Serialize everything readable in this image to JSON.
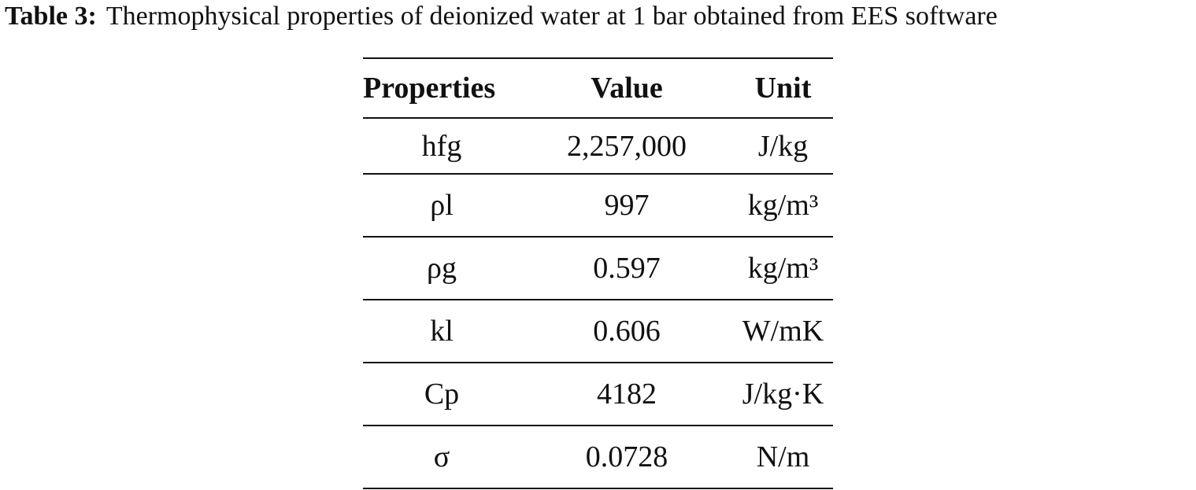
{
  "caption": {
    "label": "Table 3:",
    "text": "Thermophysical properties of deionized water at 1 bar obtained from EES software"
  },
  "table": {
    "headers": [
      "Properties",
      "Value",
      "Unit"
    ],
    "rows": [
      [
        "hfg",
        "2,257,000",
        "J/kg"
      ],
      [
        "ρl",
        "997",
        "kg/m³"
      ],
      [
        "ρg",
        "0.597",
        "kg/m³"
      ],
      [
        "kl",
        "0.606",
        "W/mK"
      ],
      [
        "Cp",
        "4182",
        "J/kg·K"
      ],
      [
        "σ",
        "0.0728",
        "N/m"
      ]
    ]
  }
}
